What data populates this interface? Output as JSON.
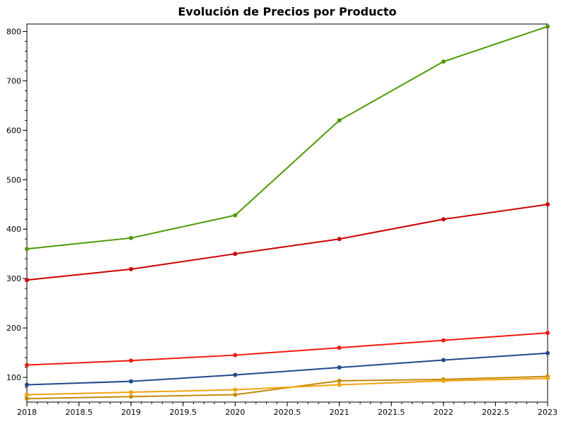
{
  "chart_data": {
    "type": "line",
    "title": "Evolución de Precios por Producto",
    "xlabel": "",
    "ylabel": "",
    "x": [
      2018,
      2019,
      2020,
      2021,
      2022,
      2023
    ],
    "xlim": [
      2018,
      2023
    ],
    "ylim": [
      50,
      815
    ],
    "x_ticks": [
      2018,
      2018.5,
      2019,
      2019.5,
      2020,
      2020.5,
      2021,
      2021.5,
      2022,
      2022.5,
      2023
    ],
    "x_tick_labels": [
      "2018",
      "2018.5",
      "2019",
      "2019.5",
      "2020",
      "2020.5",
      "2021",
      "2021.5",
      "2022",
      "2022.5",
      "2023"
    ],
    "y_ticks": [
      100,
      200,
      300,
      400,
      500,
      600,
      700,
      800
    ],
    "y_tick_labels": [
      "100",
      "200",
      "300",
      "400",
      "500",
      "600",
      "700",
      "800"
    ],
    "grid": false,
    "legend": "none",
    "series": [
      {
        "color": "#4d9a06",
        "values": [
          360,
          382,
          428,
          620,
          739,
          810
        ]
      },
      {
        "color": "#cc0000",
        "values": [
          297,
          319,
          350,
          380,
          420,
          450
        ]
      },
      {
        "color": "#ef1b10",
        "values": [
          125,
          134,
          145,
          160,
          175,
          190
        ]
      },
      {
        "color": "#1f4a8a",
        "values": [
          85,
          92,
          105,
          120,
          135,
          149
        ]
      },
      {
        "color": "#c38a0a",
        "values": [
          57,
          61,
          65,
          93,
          96,
          102
        ]
      },
      {
        "color": "#f0a30f",
        "values": [
          65,
          70,
          75,
          85,
          93,
          98
        ]
      }
    ]
  }
}
